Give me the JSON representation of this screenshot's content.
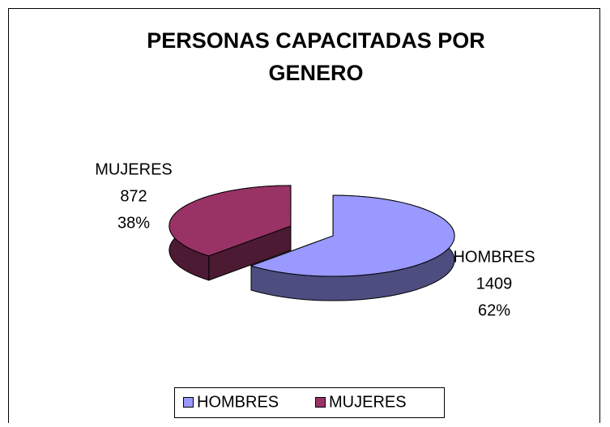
{
  "chart_data": {
    "type": "pie3d",
    "title": "PERSONAS CAPACITADAS POR GENERO",
    "categories": [
      "HOMBRES",
      "MUJERES"
    ],
    "values": [
      1409,
      872
    ],
    "percentages": [
      62,
      38
    ],
    "percentage_labels": [
      "62%",
      "38%"
    ],
    "colors": [
      "#9999ff",
      "#993366"
    ],
    "legend": "bottom"
  }
}
